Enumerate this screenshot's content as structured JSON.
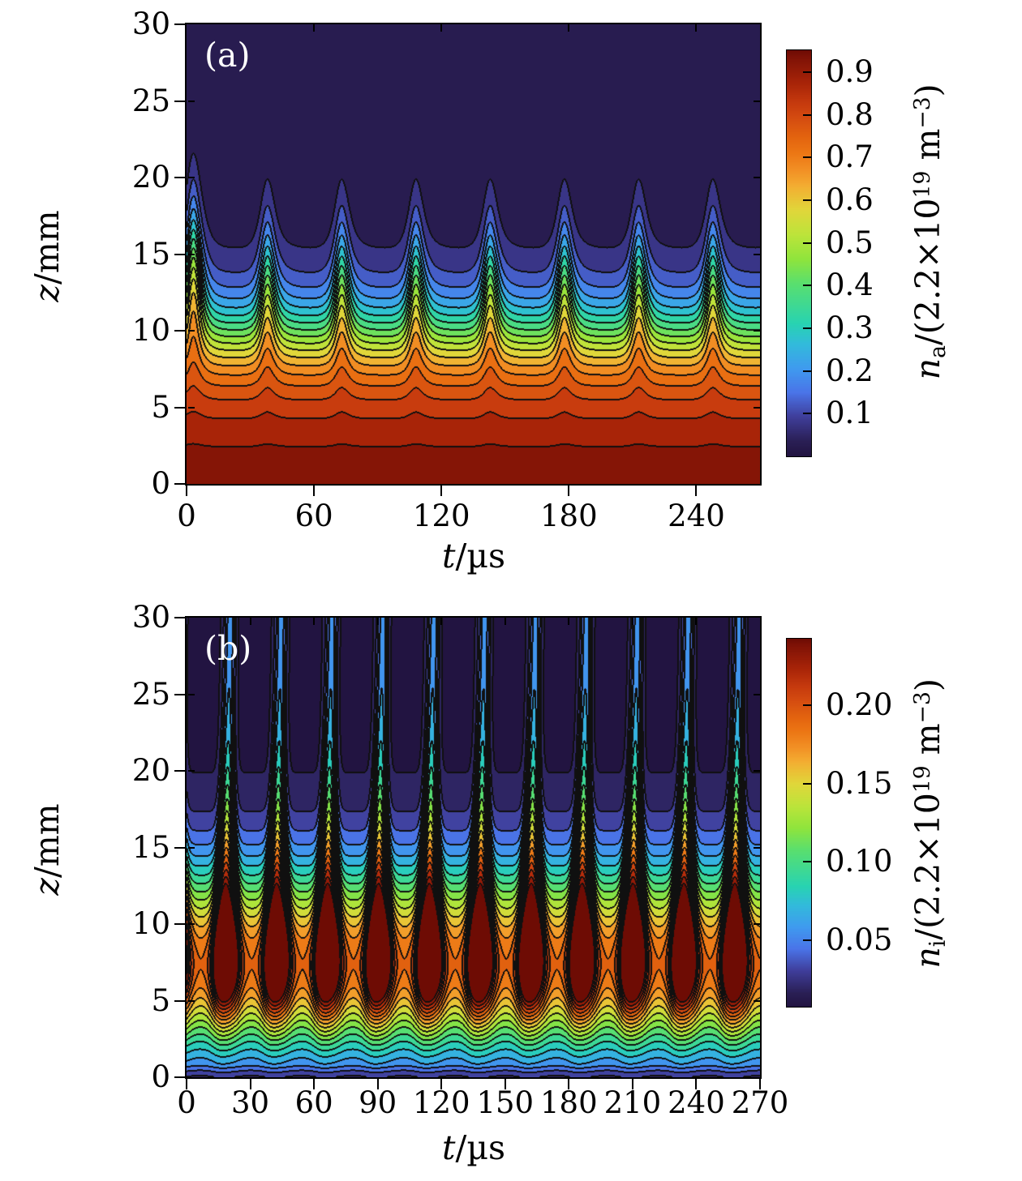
{
  "figure": {
    "bg": "#ffffff",
    "frame_color": "#000000",
    "text_color": "#000000",
    "panel_tag_color": "#ffffff",
    "contour_line_color": "#101010"
  },
  "colormap": {
    "stops": [
      [
        0.0,
        "#221441"
      ],
      [
        0.036,
        "#2A1F55"
      ],
      [
        0.096,
        "#3F3E9A"
      ],
      [
        0.156,
        "#4A74E8"
      ],
      [
        0.216,
        "#3F9BEF"
      ],
      [
        0.276,
        "#32BBDB"
      ],
      [
        0.326,
        "#28D3B2"
      ],
      [
        0.426,
        "#5ADF6E"
      ],
      [
        0.486,
        "#90E43C"
      ],
      [
        0.545,
        "#BCE43A"
      ],
      [
        0.605,
        "#E0D73A"
      ],
      [
        0.665,
        "#F3AE32"
      ],
      [
        0.705,
        "#F29025"
      ],
      [
        0.749,
        "#EC7614"
      ],
      [
        0.784,
        "#E4650F"
      ],
      [
        0.835,
        "#D44B10"
      ],
      [
        0.871,
        "#C63A0E"
      ],
      [
        0.92,
        "#A82408"
      ],
      [
        0.984,
        "#7E1206"
      ],
      [
        1.0,
        "#6E0C04"
      ]
    ]
  },
  "chart_data": [
    {
      "type": "heatmap",
      "subtype": "filled-contour",
      "tag": "(a)",
      "x": {
        "label_var": "t",
        "label_sep": "/",
        "label_unit": "µs",
        "min": 0,
        "max": 270,
        "major_ticks": [
          0,
          60,
          120,
          180,
          240
        ],
        "tick_labels": [
          "0",
          "60",
          "120",
          "180",
          "240"
        ],
        "mirror_tick_step": 60
      },
      "y": {
        "label_var": "z",
        "label_sep": "/",
        "label_unit": "mm",
        "min": 0,
        "max": 30,
        "major_ticks": [
          0,
          5,
          10,
          15,
          20,
          25,
          30
        ],
        "tick_labels": [
          "0",
          "5",
          "10",
          "15",
          "20",
          "25",
          "30"
        ]
      },
      "colorbar": {
        "label": {
          "var": "n",
          "sub": "a",
          "mid": "/(2.2×10",
          "exp1": "19",
          "mid2": " m",
          "exp2": "−3",
          "end": ")"
        },
        "tick_values": [
          0.1,
          0.2,
          0.3,
          0.4,
          0.5,
          0.6,
          0.7,
          0.8,
          0.9
        ],
        "tick_labels": [
          "0.1",
          "0.2",
          "0.3",
          "0.4",
          "0.5",
          "0.6",
          "0.7",
          "0.8",
          "0.9"
        ],
        "vmin": 0.0,
        "vmax": 0.951
      },
      "contour": {
        "step": 0.05,
        "max_band": 18
      },
      "field_model": {
        "kind": "wave-front",
        "period_us": 35,
        "first_crest_us": 3,
        "sharpness": 1.35,
        "skew": 0.42,
        "lean": 0.15,
        "wave_mean": 0.39,
        "amp_mm": 4.9,
        "amp_center_z": 9.3,
        "amp_width_z": 2.1,
        "startup_bump_mm": 1.7,
        "startup_t_us": 3.5,
        "startup_w_us": 4.5,
        "startup_z": 11,
        "surface_value": 0.953,
        "taper_per_mm": 0.0125,
        "front_z_mm": 10.85,
        "front_width_mm": 2.3
      }
    },
    {
      "type": "heatmap",
      "subtype": "filled-contour",
      "tag": "(b)",
      "x": {
        "label_var": "t",
        "label_sep": "/",
        "label_unit": "µs",
        "min": 0,
        "max": 270,
        "major_ticks": [
          0,
          30,
          60,
          90,
          120,
          150,
          180,
          210,
          240,
          270
        ],
        "tick_labels": [
          "0",
          "30",
          "60",
          "90",
          "120",
          "150",
          "180",
          "210",
          "240",
          "270"
        ],
        "mirror_tick_step": 30
      },
      "y": {
        "label_var": "z",
        "label_sep": "/",
        "label_unit": "mm",
        "min": 0,
        "max": 30,
        "major_ticks": [
          0,
          5,
          10,
          15,
          20,
          25,
          30
        ],
        "tick_labels": [
          "0",
          "5",
          "10",
          "15",
          "20",
          "25",
          "30"
        ]
      },
      "colorbar": {
        "label": {
          "var": "n",
          "sub": "i",
          "mid": "/(2.2×10",
          "exp1": "19",
          "mid2": " m",
          "exp2": "−3",
          "end": ")"
        },
        "tick_values": [
          0.05,
          0.1,
          0.15,
          0.2
        ],
        "tick_labels": [
          "0.05",
          "0.10",
          "0.15",
          "0.20"
        ],
        "vmin": 0.0076,
        "vmax": 0.2424
      },
      "contour": {
        "step": 0.0125,
        "max_band": 19
      },
      "field_model": {
        "kind": "plume",
        "period_us": 24,
        "first_spike_us": 18,
        "k0": 1.0,
        "k1": 7.0,
        "kz": 16,
        "kw": 2.8,
        "tilt": 0.02,
        "skew": 0.35,
        "lean": 0.12,
        "base0": 0.008,
        "base1": 0.17,
        "base_z": 7.5,
        "base_w_lo": 5.8,
        "base_w_hi": 6.5,
        "sheath_mm": 0.8,
        "amp1": 0.16,
        "amp_z": 4.5,
        "amp_w": 1.3,
        "cut": 0.7,
        "cut_z": 17,
        "cut_w": 3.0,
        "peak_value": 0.3
      }
    }
  ]
}
